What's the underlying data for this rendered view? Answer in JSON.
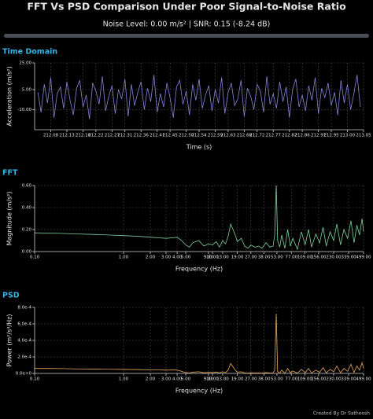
{
  "header": {
    "title": "FFT Vs PSD Comparison Under Poor Signal-to-Noise Ratio",
    "subtitle": "Noise Level: 0.00 m/s² | SNR: 0.15 (-8.24 dB)"
  },
  "footer": "Created By Dr Satheesh",
  "chart_data": [
    {
      "type": "line",
      "title": "Time Domain",
      "xlabel": "Time (s)",
      "ylabel": "Acceleration (m/s²)",
      "color": "#8a84d8",
      "grid": true,
      "log_x": false,
      "xlim": [
        212.03,
        213.05
      ],
      "ylim": [
        -25,
        25
      ],
      "xticks": [
        212.08,
        212.13,
        212.18,
        212.22,
        212.27,
        212.31,
        212.36,
        212.41,
        212.45,
        {
          "value": 212.5,
          "label": "212.50"
        },
        212.54,
        212.59,
        212.63,
        212.68,
        212.72,
        212.77,
        212.82,
        212.86,
        212.91,
        212.95,
        {
          "value": 213.0,
          "label": "213.00"
        },
        213.05
      ],
      "yticks": [
        {
          "value": -10,
          "label": "-10.00"
        },
        {
          "value": 5,
          "label": "5.00"
        },
        {
          "value": 25,
          "label": "25.00"
        }
      ],
      "x": [
        212.04,
        212.05,
        212.06,
        212.07,
        212.08,
        212.09,
        212.1,
        212.11,
        212.12,
        212.13,
        212.14,
        212.15,
        212.16,
        212.17,
        212.18,
        212.19,
        212.2,
        212.21,
        212.22,
        212.23,
        212.24,
        212.25,
        212.26,
        212.27,
        212.28,
        212.29,
        212.3,
        212.31,
        212.32,
        212.33,
        212.34,
        212.35,
        212.36,
        212.37,
        212.38,
        212.39,
        212.4,
        212.41,
        212.42,
        212.43,
        212.44,
        212.45,
        212.46,
        212.47,
        212.48,
        212.49,
        212.5,
        212.51,
        212.52,
        212.53,
        212.54,
        212.55,
        212.56,
        212.57,
        212.58,
        212.59,
        212.6,
        212.61,
        212.62,
        212.63,
        212.64,
        212.65,
        212.66,
        212.67,
        212.68,
        212.69,
        212.7,
        212.71,
        212.72,
        212.73,
        212.74,
        212.75,
        212.76,
        212.77,
        212.78,
        212.79,
        212.8,
        212.81,
        212.82,
        212.83,
        212.84,
        212.85,
        212.86,
        212.87,
        212.88,
        212.89,
        212.9,
        212.91,
        212.92,
        212.93,
        212.94,
        212.95,
        212.96,
        212.97,
        212.98,
        212.99,
        213.0,
        213.01,
        213.02,
        213.03,
        213.04
      ],
      "values": [
        3,
        -12,
        9,
        -5,
        14,
        -16,
        2,
        7,
        -9,
        11,
        -3,
        -14,
        6,
        12,
        -8,
        1,
        -17,
        10,
        4,
        -6,
        15,
        -11,
        0,
        8,
        -13,
        5,
        -2,
        13,
        -15,
        9,
        -7,
        3,
        11,
        -10,
        6,
        -4,
        16,
        -12,
        2,
        -8,
        10,
        -1,
        -16,
        7,
        12,
        -6,
        4,
        -14,
        9,
        -3,
        13,
        -9,
        1,
        8,
        -11,
        5,
        -5,
        14,
        -13,
        3,
        10,
        -7,
        -2,
        12,
        -15,
        6,
        0,
        -10,
        9,
        4,
        -12,
        15,
        -6,
        2,
        -9,
        11,
        -4,
        7,
        -16,
        5,
        13,
        -8,
        1,
        -11,
        8,
        -3,
        14,
        -13,
        6,
        -1,
        10,
        -7,
        3,
        -14,
        12,
        -5,
        9,
        -10,
        2,
        16,
        -8
      ]
    },
    {
      "type": "line",
      "title": "FFT",
      "xlabel": "Frequency (Hz)",
      "ylabel": "Magnitude (m/s²)",
      "color": "#7fd19f",
      "grid": true,
      "log_x": true,
      "xlim": [
        0.1,
        499
      ],
      "ylim": [
        0,
        0.6
      ],
      "xticks": [
        {
          "value": 0.1,
          "label": "0.10"
        },
        {
          "value": 1,
          "label": "1.00"
        },
        {
          "value": 2,
          "label": "2.00"
        },
        {
          "value": 3,
          "label": "3.00"
        },
        {
          "value": 4,
          "label": "4.00"
        },
        {
          "value": 5,
          "label": "5.00"
        },
        {
          "value": 9,
          "label": "9.00"
        },
        {
          "value": 10,
          "label": "10.00"
        },
        {
          "value": 13,
          "label": "13.00"
        },
        {
          "value": 19,
          "label": "19.00"
        },
        {
          "value": 27,
          "label": "27.00"
        },
        {
          "value": 38,
          "label": "38.00"
        },
        {
          "value": 53,
          "label": "53.00"
        },
        {
          "value": 77,
          "label": "77.00"
        },
        {
          "value": 109,
          "label": "109.00"
        },
        {
          "value": 156,
          "label": "156.00"
        },
        {
          "value": 230,
          "label": "230.00"
        },
        {
          "value": 339,
          "label": "339.00"
        },
        {
          "value": 499,
          "label": "499.00"
        }
      ],
      "yticks": [
        {
          "value": 0,
          "label": "0.00"
        },
        {
          "value": 0.2,
          "label": "0.20"
        },
        {
          "value": 0.4,
          "label": "0.40"
        },
        {
          "value": 0.6,
          "label": "0.60"
        }
      ],
      "x": [
        0.1,
        0.15,
        0.2,
        0.3,
        0.5,
        0.7,
        1,
        1.5,
        2,
        2.5,
        3,
        3.5,
        4,
        4.5,
        5,
        5.5,
        6,
        7,
        8,
        9,
        10,
        11,
        12,
        13,
        14,
        15,
        16,
        17,
        18,
        19,
        21,
        23,
        25,
        27,
        30,
        33,
        36,
        40,
        44,
        48,
        50,
        52,
        54,
        57,
        60,
        65,
        70,
        75,
        80,
        90,
        100,
        110,
        120,
        130,
        145,
        160,
        175,
        190,
        210,
        230,
        250,
        275,
        300,
        330,
        360,
        390,
        420,
        450,
        480,
        499
      ],
      "values": [
        0.17,
        0.168,
        0.165,
        0.16,
        0.155,
        0.15,
        0.145,
        0.138,
        0.13,
        0.125,
        0.12,
        0.125,
        0.13,
        0.1,
        0.06,
        0.04,
        0.08,
        0.1,
        0.05,
        0.07,
        0.06,
        0.09,
        0.04,
        0.1,
        0.07,
        0.14,
        0.25,
        0.2,
        0.15,
        0.09,
        0.12,
        0.05,
        0.03,
        0.06,
        0.04,
        0.05,
        0.03,
        0.08,
        0.04,
        0.05,
        0.15,
        0.6,
        0.1,
        0.04,
        0.15,
        0.03,
        0.2,
        0.05,
        0.12,
        0.02,
        0.18,
        0.06,
        0.2,
        0.04,
        0.16,
        0.08,
        0.22,
        0.05,
        0.18,
        0.1,
        0.25,
        0.06,
        0.2,
        0.12,
        0.28,
        0.08,
        0.24,
        0.15,
        0.3,
        0.18
      ]
    },
    {
      "type": "line",
      "title": "PSD",
      "xlabel": "Frequency (Hz)",
      "ylabel": "Power (m²/s⁴/Hz)",
      "color": "#e8a85a",
      "grid": true,
      "log_x": true,
      "xlim": [
        0.1,
        499
      ],
      "ylim": [
        0,
        0.0008
      ],
      "xticks": [
        {
          "value": 0.1,
          "label": "0.10"
        },
        {
          "value": 1,
          "label": "1.00"
        },
        {
          "value": 2,
          "label": "2.00"
        },
        {
          "value": 3,
          "label": "3.00"
        },
        {
          "value": 4,
          "label": "4.00"
        },
        {
          "value": 5,
          "label": "5.00"
        },
        {
          "value": 9,
          "label": "9.00"
        },
        {
          "value": 10,
          "label": "10.00"
        },
        {
          "value": 13,
          "label": "13.00"
        },
        {
          "value": 19,
          "label": "19.00"
        },
        {
          "value": 27,
          "label": "27.00"
        },
        {
          "value": 38,
          "label": "38.00"
        },
        {
          "value": 53,
          "label": "53.00"
        },
        {
          "value": 77,
          "label": "77.00"
        },
        {
          "value": 109,
          "label": "109.00"
        },
        {
          "value": 156,
          "label": "156.00"
        },
        {
          "value": 230,
          "label": "230.00"
        },
        {
          "value": 339,
          "label": "339.00"
        },
        {
          "value": 499,
          "label": "499.00"
        }
      ],
      "yticks": [
        {
          "value": 0,
          "label": "0.0e+0"
        },
        {
          "value": 0.0002,
          "label": "2.0e-4"
        },
        {
          "value": 0.0004,
          "label": "4.0e-4"
        },
        {
          "value": 0.0006,
          "label": "6.0e-4"
        },
        {
          "value": 0.0008,
          "label": "8.0e-4"
        }
      ],
      "x": [
        0.1,
        0.15,
        0.2,
        0.3,
        0.5,
        0.7,
        1,
        1.5,
        2,
        2.5,
        3,
        3.5,
        4,
        4.5,
        5,
        5.5,
        6,
        7,
        8,
        9,
        10,
        11,
        12,
        13,
        14,
        15,
        16,
        17,
        18,
        19,
        21,
        23,
        25,
        27,
        30,
        33,
        36,
        40,
        44,
        48,
        50,
        52,
        54,
        57,
        60,
        65,
        70,
        75,
        80,
        90,
        100,
        110,
        120,
        130,
        145,
        160,
        175,
        190,
        210,
        230,
        250,
        275,
        300,
        330,
        360,
        390,
        420,
        450,
        480,
        499
      ],
      "values": [
        6e-05,
        6e-05,
        5.8e-05,
        5.5e-05,
        5.2e-05,
        5e-05,
        4.8e-05,
        4.6e-05,
        4.4e-05,
        4.2e-05,
        4e-05,
        4.2e-05,
        4e-05,
        2.5e-05,
        1e-05,
        5e-06,
        1.5e-05,
        2e-05,
        8e-06,
        1.2e-05,
        1e-05,
        1.5e-05,
        6e-06,
        2e-05,
        1e-05,
        4e-05,
        0.00012,
        8e-05,
        4e-05,
        1.5e-05,
        2e-05,
        6e-06,
        3e-06,
        8e-06,
        5e-06,
        6e-06,
        3e-06,
        1e-05,
        4e-06,
        6e-06,
        4e-05,
        0.00072,
        2e-05,
        4e-06,
        4e-05,
        3e-06,
        6e-05,
        6e-06,
        3e-05,
        2e-06,
        5e-05,
        8e-06,
        6e-05,
        5e-06,
        4e-05,
        1.2e-05,
        7e-05,
        6e-06,
        5e-05,
        2e-05,
        9e-05,
        8e-06,
        6e-05,
        2.5e-05,
        0.00011,
        1.2e-05,
        9e-05,
        4e-05,
        0.00013,
        6e-05
      ]
    }
  ]
}
